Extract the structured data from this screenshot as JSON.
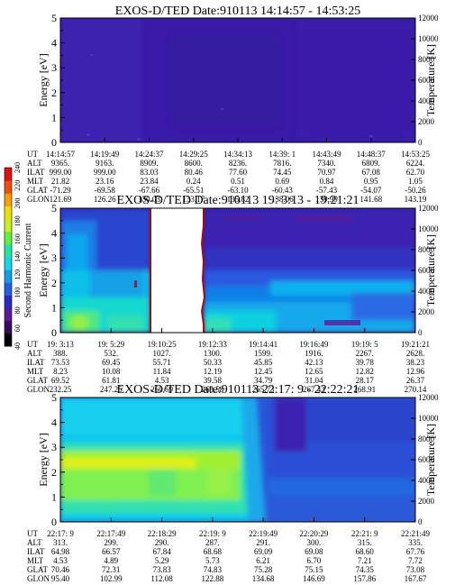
{
  "colorbar": {
    "label": "Second Harmonic Current",
    "ticks": [
      "40",
      "60",
      "80",
      "100",
      "120",
      "140",
      "160",
      "180",
      "200",
      "220",
      "240"
    ],
    "colors": [
      "#000000",
      "#3a0a5a",
      "#5a1a9a",
      "#2a2acc",
      "#2060e8",
      "#10a0ee",
      "#10d8e8",
      "#20e8a0",
      "#60f040",
      "#c8f020",
      "#f0e000",
      "#f8a000",
      "#f05000",
      "#e01010"
    ]
  },
  "chart_data": [
    {
      "type": "heatmap",
      "title": "EXOS-D/TED   Date:910113   14:14:57 - 14:53:25",
      "ylabel": "Energy [eV]",
      "y2label": "Temperature [K]",
      "ylim": [
        0,
        5
      ],
      "y2lim": [
        0,
        12000
      ],
      "yticks": [
        "0",
        "1",
        "2",
        "3",
        "4",
        "5"
      ],
      "y2ticks": [
        "0",
        "2000",
        "4000",
        "6000",
        "8000",
        "10000",
        "12000"
      ],
      "row_labels": [
        "UT",
        "ALT",
        "ILAT",
        "MLT",
        "GLAT",
        "GLON"
      ],
      "columns": [
        [
          "14:14:57",
          "9365.",
          "999.00",
          "21.82",
          "-71.29",
          "121.69"
        ],
        [
          "14:19:49",
          "9163.",
          "999.00",
          "23.16",
          "-69.58",
          "126.26"
        ],
        [
          "14:24:37",
          "8909.",
          "83.03",
          "23.84",
          "-67.66",
          "130.03"
        ],
        [
          "14:29:25",
          "8600.",
          "80.46",
          "0.24",
          "-65.51",
          "133.17"
        ],
        [
          "14:34:13",
          "8236.",
          "77.60",
          "0.51",
          "-63.10",
          "135.82"
        ],
        [
          "14:39: 1",
          "7816.",
          "74.45",
          "0.69",
          "-60.43",
          "138.06"
        ],
        [
          "14:43:49",
          "7340.",
          "70.97",
          "0.84",
          "-57.43",
          "139.99"
        ],
        [
          "14:48:37",
          "6809.",
          "67.08",
          "0.95",
          "-54.07",
          "141.68"
        ],
        [
          "14:53:25",
          "6224.",
          "62.70",
          "1.05",
          "-50.26",
          "143.19"
        ]
      ]
    },
    {
      "type": "heatmap",
      "title": "EXOS-D/TED   Date:910113   19: 3:13 - 19:21:21",
      "ylabel": "Energy [eV]",
      "y2label": "Temperature [K]",
      "ylim": [
        0,
        5
      ],
      "y2lim": [
        0,
        12000
      ],
      "yticks": [
        "0",
        "1",
        "2",
        "3",
        "4",
        "5"
      ],
      "y2ticks": [
        "0",
        "2000",
        "4000",
        "6000",
        "8000",
        "10000",
        "12000"
      ],
      "row_labels": [
        "UT",
        "ALT",
        "ILAT",
        "MLT",
        "GLAT",
        "GLON"
      ],
      "columns": [
        [
          "19: 3:13",
          "388.",
          "73.53",
          "8.23",
          "69.52",
          "232.25"
        ],
        [
          "19: 5:29",
          "532.",
          "69.45",
          "10.08",
          "61.81",
          "247.25"
        ],
        [
          "19:10:25",
          "1027.",
          "55.71",
          "11.84",
          "4.53",
          "260.69"
        ],
        [
          "19:12:33",
          "1300.",
          "50.33",
          "12.19",
          "39.58",
          "263.58"
        ],
        [
          "19:14:41",
          "1599.",
          "45.85",
          "12.45",
          "34.79",
          "265.73"
        ],
        [
          "19:16:49",
          "1916.",
          "42.13",
          "12.65",
          "31.04",
          "267.43"
        ],
        [
          "19:19: 5",
          "2267.",
          "39.78",
          "12.82",
          "28.17",
          "268.91"
        ],
        [
          "19:21:21",
          "2628.",
          "38.23",
          "12.96",
          "26.37",
          "270.14"
        ]
      ]
    },
    {
      "type": "heatmap",
      "title": "EXOS-D/TED   Date:910113   22:17: 9 - 22:22:21",
      "ylabel": "Energy [eV]",
      "y2label": "Temperature [K]",
      "ylim": [
        0,
        5
      ],
      "y2lim": [
        0,
        12000
      ],
      "yticks": [
        "0",
        "1",
        "2",
        "3",
        "4",
        "5"
      ],
      "y2ticks": [
        "0",
        "2000",
        "4000",
        "6000",
        "8000",
        "10000",
        "12000"
      ],
      "row_labels": [
        "UT",
        "ALT",
        "ILAT",
        "MLT",
        "GLAT",
        "GLON"
      ],
      "columns": [
        [
          "22:17: 9",
          "313.",
          "64.98",
          "4.53",
          "70.46",
          "95.40"
        ],
        [
          "22:17:49",
          "299.",
          "66.57",
          "4.89",
          "72.31",
          "102.99"
        ],
        [
          "22:18:29",
          "290.",
          "67.84",
          "5.29",
          "73.83",
          "112.08"
        ],
        [
          "22:19: 9",
          "287.",
          "68.68",
          "5.73",
          "74.83",
          "122.88"
        ],
        [
          "22:19:49",
          "291.",
          "69.09",
          "6.21",
          "75.28",
          "134.68"
        ],
        [
          "22:20:29",
          "300.",
          "69.08",
          "6.70",
          "75.15",
          "146.69"
        ],
        [
          "22:21: 9",
          "315.",
          "68.60",
          "7.21",
          "74.35",
          "157.86"
        ],
        [
          "22:21:49",
          "335.",
          "67.76",
          "7.72",
          "73.08",
          "167.67"
        ]
      ]
    }
  ]
}
